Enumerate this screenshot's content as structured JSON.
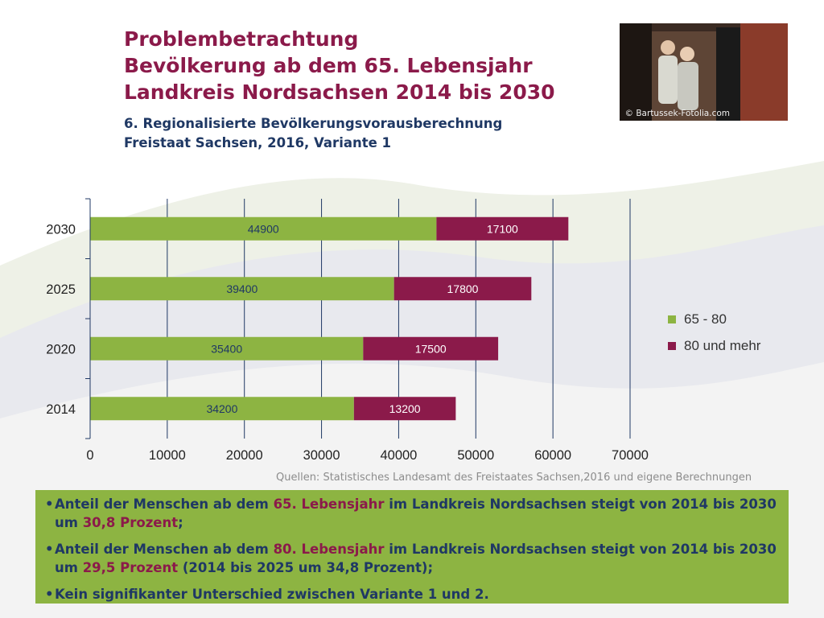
{
  "title": {
    "line1": "Problembetrachtung",
    "line2": "Bevölkerung ab dem 65. Lebensjahr",
    "line3": "Landkreis Nordsachsen 2014 bis 2030"
  },
  "subtitle": {
    "line1": "6. Regionalisierte Bevölkerungsvorausberechnung",
    "line2": "Freistaat Sachsen, 2016, Variante 1"
  },
  "photo": {
    "credit": "© Bartussek-Fotolia.com"
  },
  "source": "Quellen: Statistisches Landesamt des Freistaates Sachsen,2016 und eigene Berechnungen",
  "chart_data": {
    "type": "bar",
    "orientation": "horizontal",
    "stacked": true,
    "categories": [
      "2014",
      "2020",
      "2025",
      "2030"
    ],
    "series": [
      {
        "name": "65 - 80",
        "values": [
          34200,
          35400,
          39400,
          44900
        ],
        "color": "#8db442"
      },
      {
        "name": "80 und mehr",
        "values": [
          13200,
          17500,
          17800,
          17100
        ],
        "color": "#8b1a4a"
      }
    ],
    "xlim": [
      0,
      70000
    ],
    "xticks": [
      "0",
      "10000",
      "20000",
      "30000",
      "40000",
      "50000",
      "60000",
      "70000"
    ],
    "grid": true,
    "legend": "right"
  },
  "info": {
    "b1": {
      "p1": "Anteil der Menschen ab dem ",
      "h1": "65. Lebensjahr",
      "p2": " im Landkreis Nordsachsen steigt von 2014 bis 2030 um ",
      "h2": "30,8 Prozent",
      "p3": ";"
    },
    "b2": {
      "p1": "Anteil der Menschen ab dem ",
      "h1": "80. Lebensjahr",
      "p2": " im Landkreis Nordsachsen steigt von 2014 bis 2030 um ",
      "h2": "29,5 Prozent",
      "p3": " (2014 bis 2025 um 34,8 Prozent);"
    },
    "b3": {
      "p1": "Kein signifikanter Unterschied zwischen Variante 1 und 2."
    },
    "bullet": "•"
  },
  "colors": {
    "title": "#8b1a4a",
    "subtitle": "#1f3864",
    "box": "#8db442"
  }
}
